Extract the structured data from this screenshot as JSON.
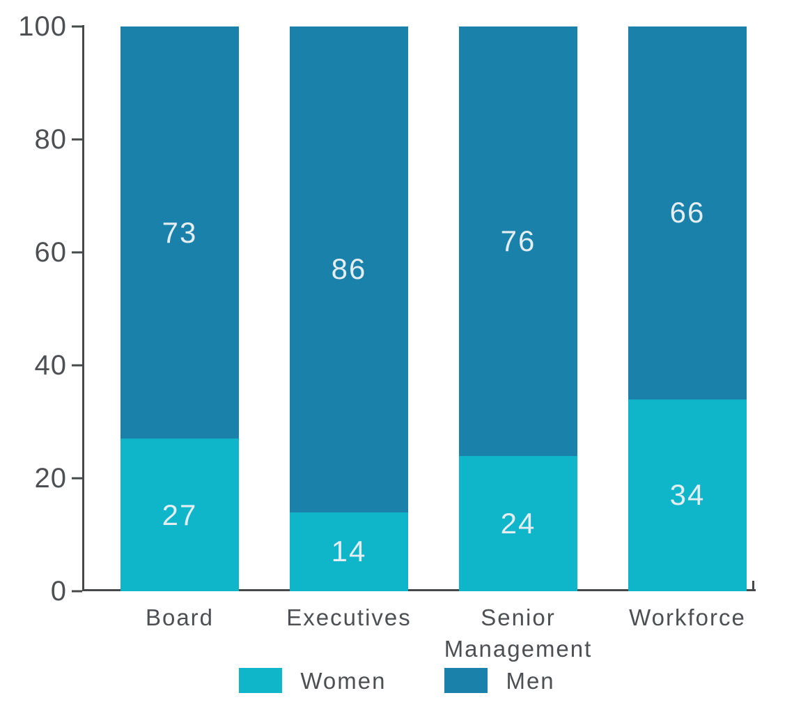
{
  "figure": {
    "axis_color": "#47484a",
    "tick_label_color": "#4d4f52",
    "value_label_color": "#e4eef1"
  },
  "chart_data": {
    "type": "bar",
    "stacked": true,
    "title": "",
    "xlabel": "",
    "ylabel": "",
    "categories": [
      "Board",
      "Executives",
      "Senior Management",
      "Workforce"
    ],
    "series": [
      {
        "name": "Women",
        "color": "#0fb5c9",
        "values": [
          27,
          14,
          24,
          34
        ]
      },
      {
        "name": "Men",
        "color": "#1a81ab",
        "values": [
          73,
          86,
          76,
          66
        ]
      }
    ],
    "ylim": [
      0,
      100
    ],
    "yticks": [
      0,
      20,
      40,
      60,
      80,
      100
    ],
    "grid": false,
    "legend_position": "bottom",
    "legend": [
      "Women",
      "Men"
    ]
  }
}
